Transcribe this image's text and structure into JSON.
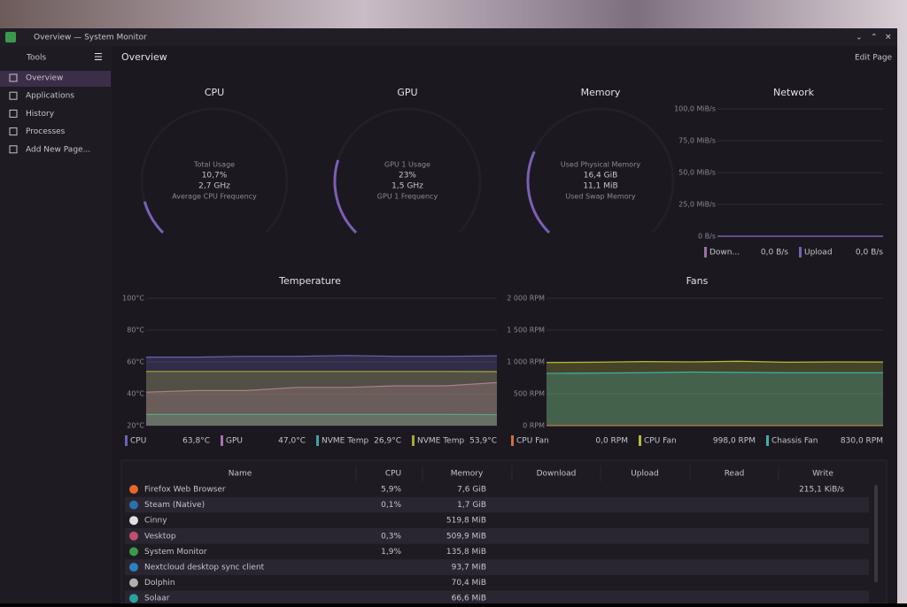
{
  "window": {
    "title": "Overview — System Monitor"
  },
  "sidebar": {
    "tools": "Tools",
    "items": [
      "Overview",
      "Applications",
      "History",
      "Processes",
      "Add New Page..."
    ]
  },
  "page": {
    "title": "Overview",
    "edit": "Edit Page"
  },
  "gauges": [
    {
      "title": "CPU",
      "lines": [
        "Total Usage",
        "10,7%",
        "2,7 GHz",
        "Average CPU Frequency"
      ],
      "value": 10.7,
      "ylim": [
        0,
        100
      ],
      "color": "#7b5fb5"
    },
    {
      "title": "GPU",
      "lines": [
        "GPU 1 Usage",
        "23%",
        "1,5 GHz",
        "GPU 1 Frequency"
      ],
      "value": 23,
      "ylim": [
        0,
        100
      ],
      "color": "#7b5fb5"
    },
    {
      "title": "Memory",
      "lines": [
        "Used Physical Memory",
        "16,4 GiB",
        "11,1 MiB",
        "Used Swap Memory"
      ],
      "value": 16.4,
      "ylim": [
        0,
        64
      ],
      "color": "#7b5fb5"
    }
  ],
  "network": {
    "title": "Network",
    "ylim": [
      0,
      100
    ],
    "yticks": [
      {
        "value": 100,
        "label": "100,0 MiB/s"
      },
      {
        "value": 75,
        "label": "75,0 MiB/s"
      },
      {
        "value": 50,
        "label": "50,0 MiB/s"
      },
      {
        "value": 25,
        "label": "25,0 MiB/s"
      },
      {
        "value": 0,
        "label": "0 B/s"
      }
    ],
    "series": [
      {
        "name": "Down...",
        "current": "0,0 B/s",
        "color": "#9b6fa8",
        "values": [
          0,
          0,
          0,
          0,
          0,
          0,
          0,
          0
        ]
      },
      {
        "name": "Upload",
        "current": "0,0 B/s",
        "color": "#7b5fb5",
        "values": [
          0,
          0,
          0,
          0,
          0,
          0,
          0,
          0
        ]
      }
    ]
  },
  "temperature": {
    "title": "Temperature",
    "ylim": [
      20,
      100
    ],
    "yticks": [
      {
        "value": 100,
        "label": "100°C"
      },
      {
        "value": 80,
        "label": "80°C"
      },
      {
        "value": 60,
        "label": "60°C"
      },
      {
        "value": 40,
        "label": "40°C"
      },
      {
        "value": 20,
        "label": "20°C"
      }
    ],
    "series": [
      {
        "name": "CPU",
        "current": "63,8°C",
        "color": "#6b63b5",
        "values": [
          63,
          63,
          63.5,
          63.5,
          64,
          63.5,
          63.5,
          63.8
        ]
      },
      {
        "name": "GPU",
        "current": "47,0°C",
        "color": "#a96fb0",
        "values": [
          41,
          42,
          42,
          44,
          44,
          45,
          45,
          47
        ]
      },
      {
        "name": "NVME Temp",
        "current": "26,9°C",
        "color": "#3fa0a8",
        "values": [
          27,
          27,
          27,
          27,
          27,
          27,
          27,
          26.9
        ]
      },
      {
        "name": "NVME Temp",
        "current": "53,9°C",
        "color": "#a8a83a",
        "values": [
          54,
          54,
          54,
          54,
          54,
          54,
          54,
          53.9
        ]
      }
    ]
  },
  "fans": {
    "title": "Fans",
    "ylim": [
      0,
      2000
    ],
    "yticks": [
      {
        "value": 2000,
        "label": "2 000 RPM"
      },
      {
        "value": 1500,
        "label": "1 500 RPM"
      },
      {
        "value": 1000,
        "label": "1 000 RPM"
      },
      {
        "value": 500,
        "label": "500 RPM"
      },
      {
        "value": 0,
        "label": "0 RPM"
      }
    ],
    "series": [
      {
        "name": "CPU Fan",
        "current": "0,0 RPM",
        "color": "#d0703a",
        "values": [
          0,
          0,
          0,
          0,
          0,
          0,
          0,
          0
        ]
      },
      {
        "name": "CPU Fan",
        "current": "998,0 RPM",
        "color": "#b8b83a",
        "values": [
          990,
          995,
          1005,
          1000,
          1010,
          995,
          1000,
          998
        ]
      },
      {
        "name": "Chassis Fan",
        "current": "830,0 RPM",
        "color": "#3fb0a8",
        "values": [
          820,
          825,
          830,
          840,
          835,
          830,
          830,
          830
        ]
      }
    ]
  },
  "table": {
    "columns": [
      "Name",
      "CPU",
      "Memory",
      "Download",
      "Upload",
      "Read",
      "Write"
    ],
    "rows": [
      {
        "name": "Firefox Web Browser",
        "cpu": "5,9%",
        "memory": "7,6 GiB",
        "write": "215,1 KiB/s"
      },
      {
        "name": "Steam (Native)",
        "cpu": "0,1%",
        "memory": "1,7 GiB"
      },
      {
        "name": "Cinny",
        "memory": "519,8 MiB"
      },
      {
        "name": "Vesktop",
        "cpu": "0,3%",
        "memory": "509,9 MiB"
      },
      {
        "name": "System Monitor",
        "cpu": "1,9%",
        "memory": "135,8 MiB"
      },
      {
        "name": "Nextcloud desktop sync client",
        "memory": "93,7 MiB"
      },
      {
        "name": "Dolphin",
        "memory": "70,4 MiB"
      },
      {
        "name": "Solaar",
        "memory": "66,6 MiB"
      }
    ]
  }
}
